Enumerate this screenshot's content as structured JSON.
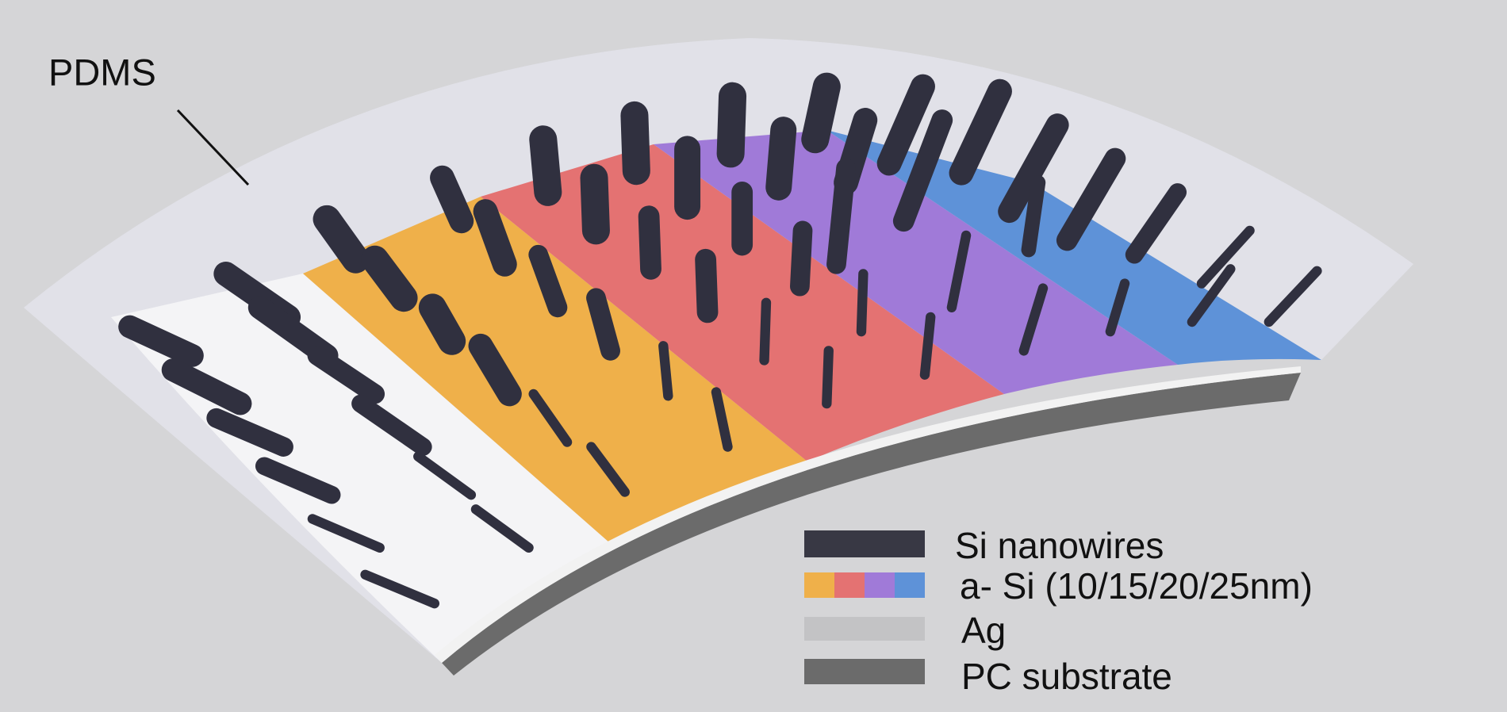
{
  "labels": {
    "pdms": "PDMS"
  },
  "legend": [
    "Si nanowires",
    "a- Si (10/15/20/25nm)",
    "Ag",
    "PC substrate"
  ]
}
